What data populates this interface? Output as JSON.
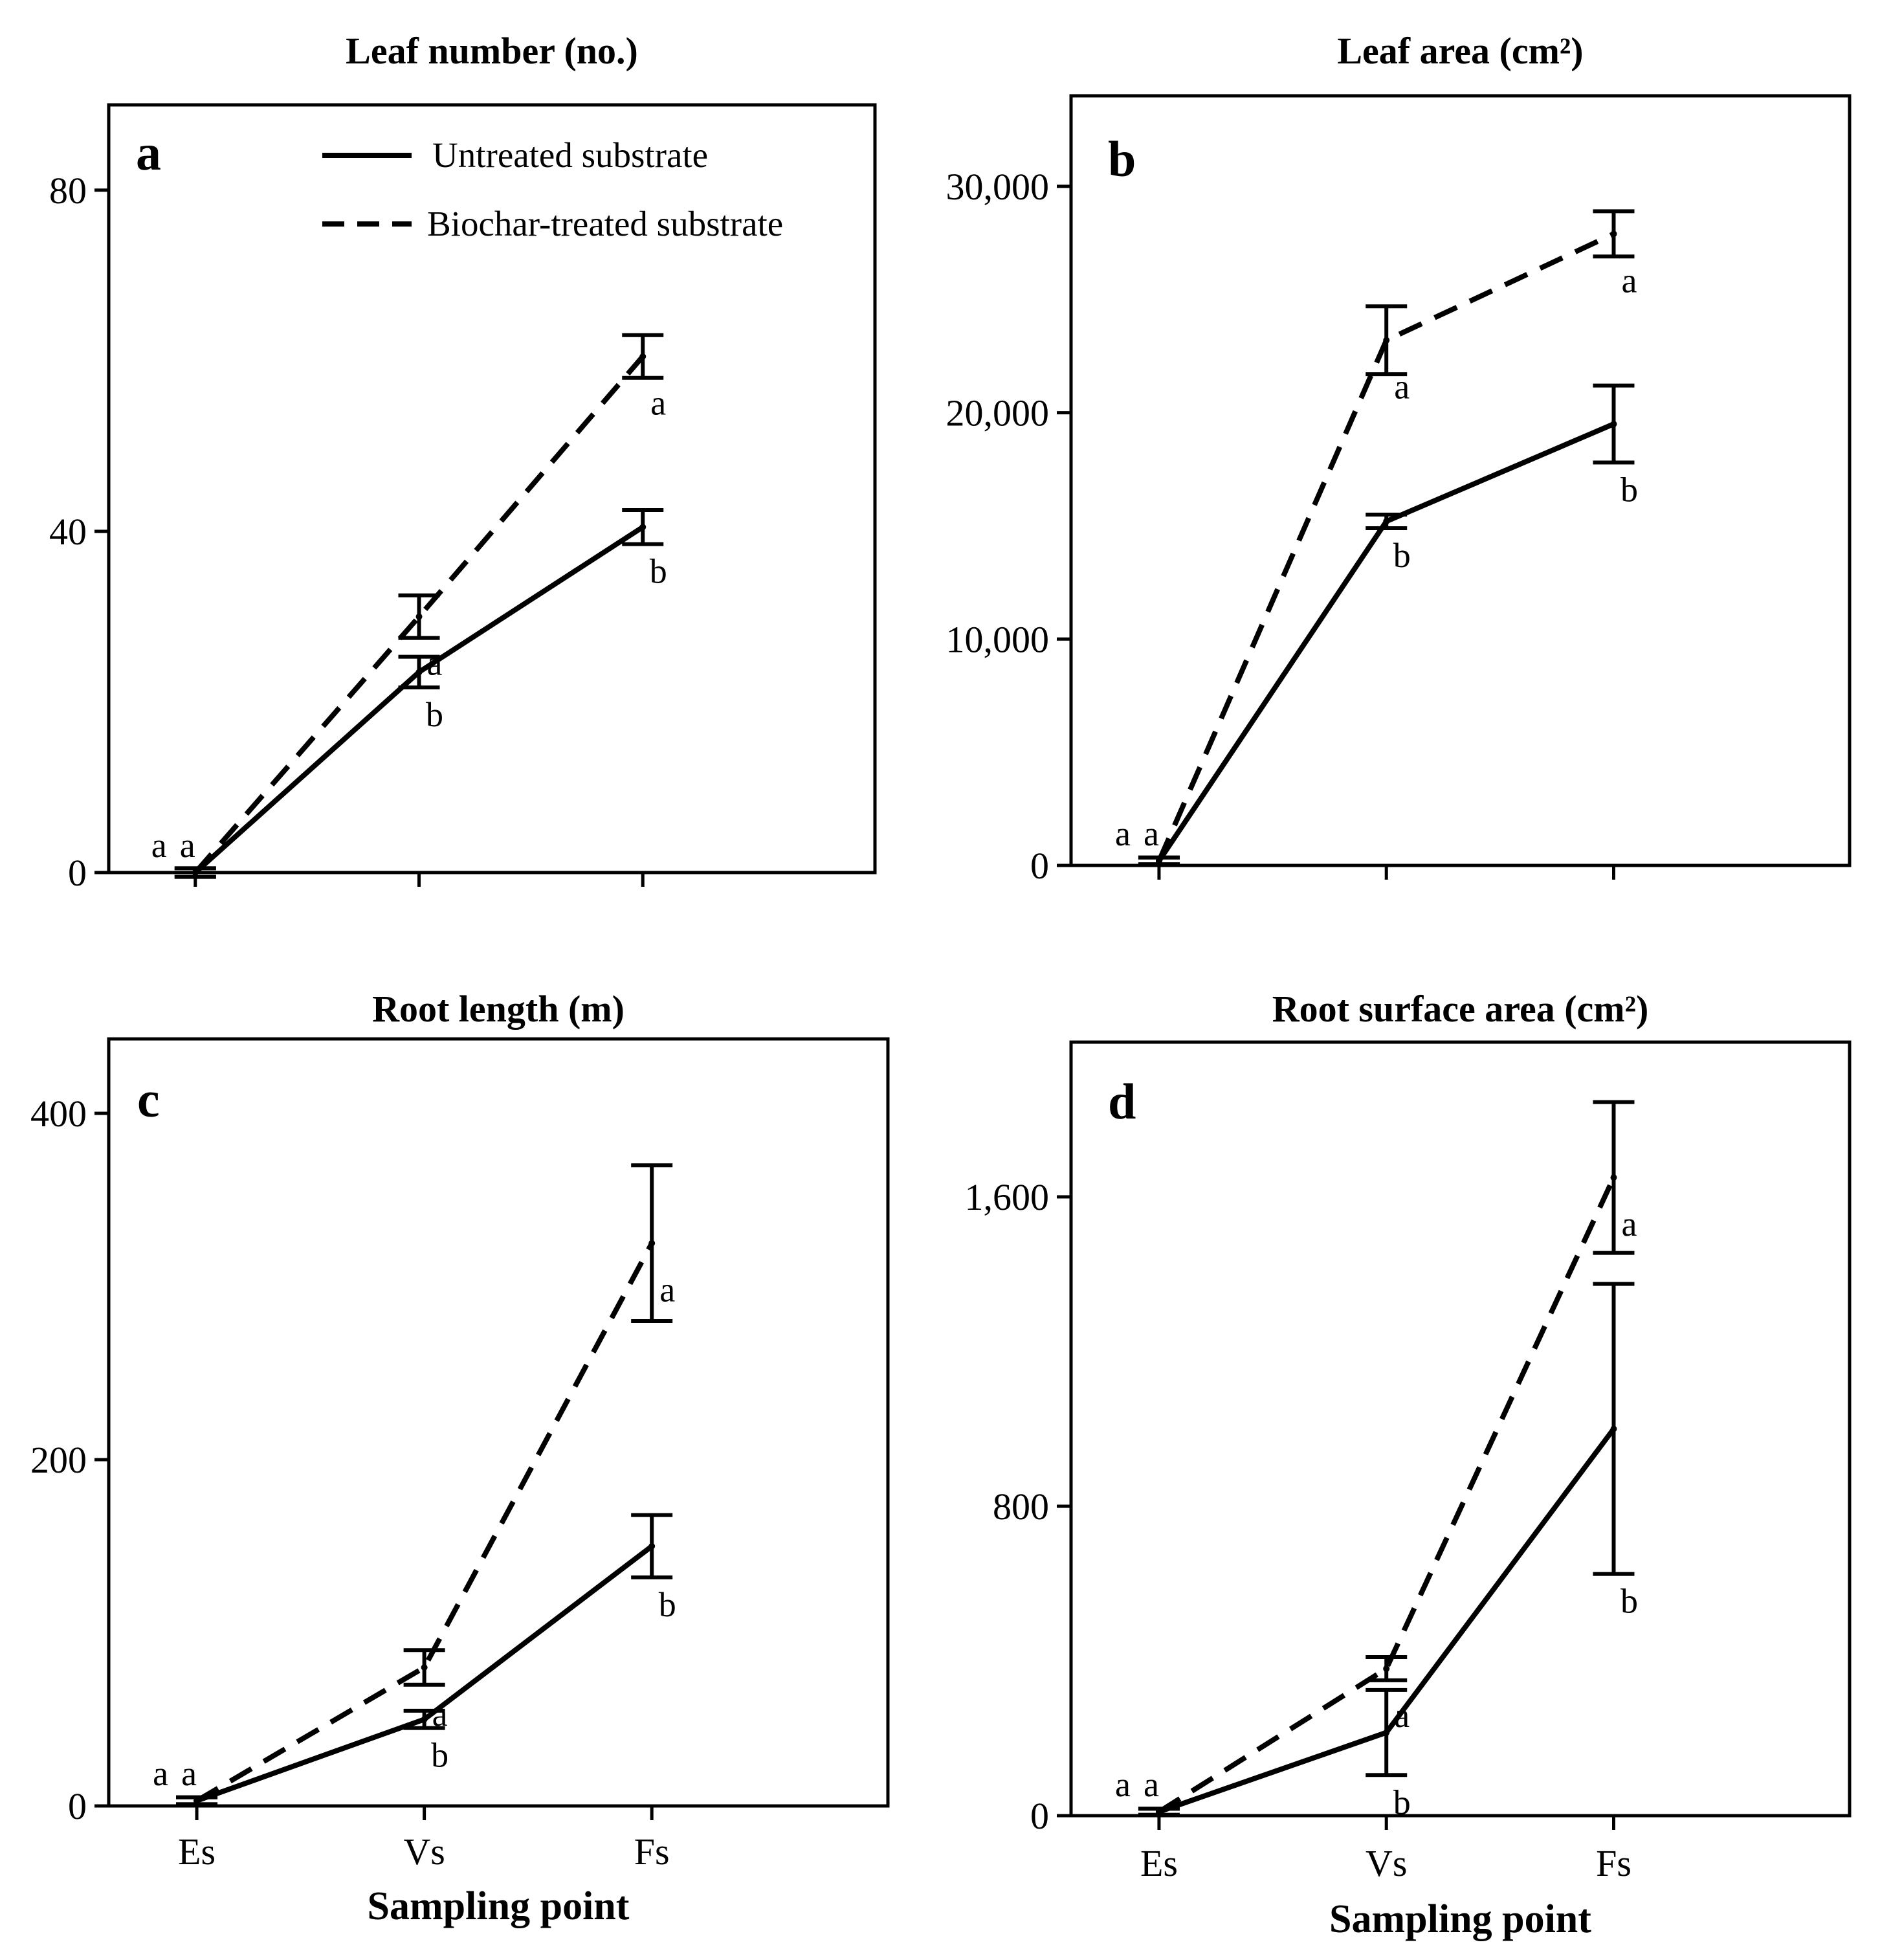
{
  "legend": {
    "untreated": "Untreated substrate",
    "biochar": "Biochar-treated substrate"
  },
  "chart_data": [
    {
      "type": "line",
      "panel": "a",
      "title": "Leaf number (no.)",
      "xlabel": "",
      "categories": [
        "Es",
        "Vs",
        "Fs"
      ],
      "ylim": [
        0,
        90
      ],
      "yticks": [
        0,
        40,
        80
      ],
      "ytick_labels": [
        "0",
        "40",
        "80"
      ],
      "show_category_labels": false,
      "series": [
        {
          "name": "Untreated substrate",
          "style": "solid",
          "values": [
            0,
            23.5,
            40.5
          ],
          "errors": [
            0.5,
            1.8,
            2.0
          ],
          "letters": [
            "a",
            "b",
            "b"
          ]
        },
        {
          "name": "Biochar-treated substrate",
          "style": "dashed",
          "values": [
            0,
            30,
            60.5
          ],
          "errors": [
            0.5,
            2.5,
            2.5
          ],
          "letters": [
            "a",
            "a",
            "a"
          ]
        }
      ]
    },
    {
      "type": "line",
      "panel": "b",
      "title": "Leaf area (cm²)",
      "xlabel": "",
      "categories": [
        "Es",
        "Vs",
        "Fs"
      ],
      "ylim": [
        0,
        34000
      ],
      "yticks": [
        0,
        10000,
        20000,
        30000
      ],
      "ytick_labels": [
        "0",
        "10,000",
        "20,000",
        "30,000"
      ],
      "show_category_labels": false,
      "series": [
        {
          "name": "Untreated substrate",
          "style": "solid",
          "values": [
            200,
            15200,
            19500
          ],
          "errors": [
            150,
            300,
            1700
          ],
          "letters": [
            "a",
            "b",
            "b"
          ]
        },
        {
          "name": "Biochar-treated substrate",
          "style": "dashed",
          "values": [
            200,
            23200,
            27900
          ],
          "errors": [
            150,
            1500,
            1000
          ],
          "letters": [
            "a",
            "a",
            "a"
          ]
        }
      ]
    },
    {
      "type": "line",
      "panel": "c",
      "title": "Root length (m)",
      "xlabel": "Sampling point",
      "categories": [
        "Es",
        "Vs",
        "Fs"
      ],
      "ylim": [
        0,
        443
      ],
      "yticks": [
        0,
        200,
        400
      ],
      "ytick_labels": [
        "0",
        "200",
        "400"
      ],
      "show_category_labels": true,
      "series": [
        {
          "name": "Untreated substrate",
          "style": "solid",
          "values": [
            3,
            50,
            150
          ],
          "errors": [
            2,
            5,
            18
          ],
          "letters": [
            "a",
            "b",
            "b"
          ]
        },
        {
          "name": "Biochar-treated substrate",
          "style": "dashed",
          "values": [
            3,
            80,
            325
          ],
          "errors": [
            2,
            10,
            45
          ],
          "letters": [
            "a",
            "a",
            "a"
          ]
        }
      ]
    },
    {
      "type": "line",
      "panel": "d",
      "title": "Root surface area (cm²)",
      "xlabel": "Sampling point",
      "categories": [
        "Es",
        "Vs",
        "Fs"
      ],
      "ylim": [
        0,
        2000
      ],
      "yticks": [
        0,
        800,
        1600
      ],
      "ytick_labels": [
        "0",
        "800",
        "1,600"
      ],
      "show_category_labels": true,
      "series": [
        {
          "name": "Untreated substrate",
          "style": "solid",
          "values": [
            10,
            215,
            1000
          ],
          "errors": [
            8,
            110,
            375
          ],
          "letters": [
            "a",
            "b",
            "b"
          ]
        },
        {
          "name": "Biochar-treated substrate",
          "style": "dashed",
          "values": [
            10,
            380,
            1650
          ],
          "errors": [
            8,
            30,
            195
          ],
          "letters": [
            "a",
            "a",
            "a"
          ]
        }
      ]
    }
  ]
}
